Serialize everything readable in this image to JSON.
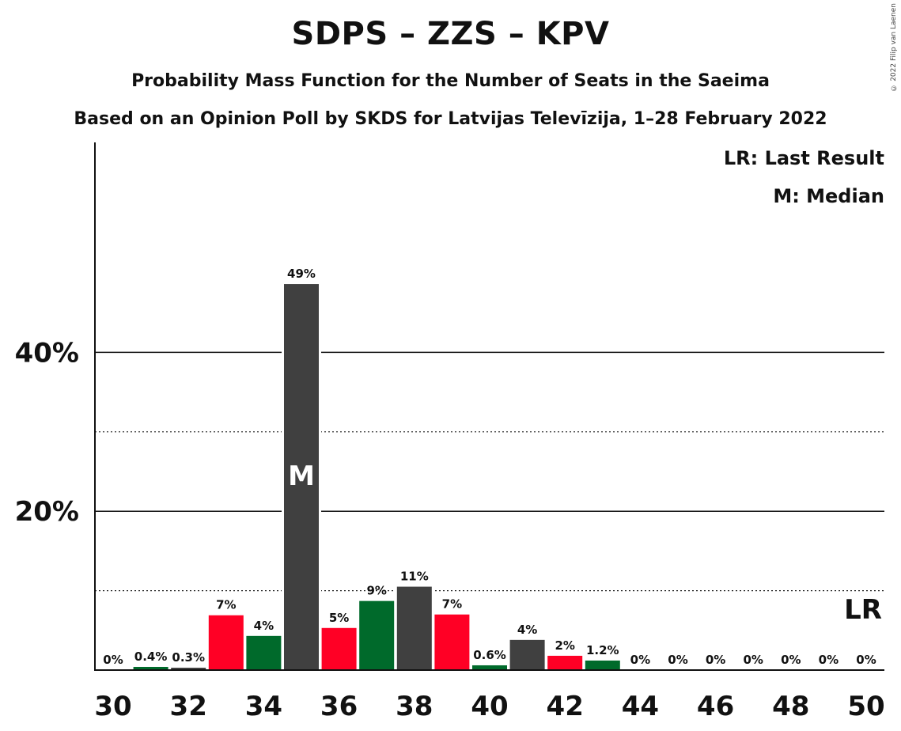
{
  "title": "SDPS – ZZS – KPV",
  "subtitle": "Probability Mass Function for the Number of Seats in the Saeima",
  "subtitle2": "Based on an Opinion Poll by SKDS for Latvijas Televīzija, 1–28 February 2022",
  "copyright": "© 2022 Filip van Laenen",
  "legend": {
    "last_result": "LR: Last Result",
    "median": "M: Median"
  },
  "colors": {
    "red": "#ff0025",
    "green": "#006a2b",
    "gray": "#404040"
  },
  "chart_data": {
    "type": "bar",
    "title": "SDPS – ZZS – KPV",
    "xlabel": "",
    "ylabel": "",
    "x": [
      30,
      31,
      32,
      33,
      34,
      35,
      36,
      37,
      38,
      39,
      40,
      41,
      42,
      43,
      44,
      45,
      46,
      47,
      48,
      49,
      50
    ],
    "values": [
      0,
      0.4,
      0.3,
      6.9,
      4.3,
      48.6,
      5.3,
      8.7,
      10.5,
      7.0,
      0.6,
      3.8,
      1.8,
      1.2,
      0,
      0,
      0,
      0,
      0,
      0,
      0
    ],
    "labels": [
      "0%",
      "0.4%",
      "0.3%",
      "7%",
      "4%",
      "49%",
      "5%",
      "9%",
      "11%",
      "7%",
      "0.6%",
      "4%",
      "2%",
      "1.2%",
      "0%",
      "0%",
      "0%",
      "0%",
      "0%",
      "0%",
      "0%"
    ],
    "bar_colors": [
      "red",
      "green",
      "gray",
      "red",
      "green",
      "gray",
      "red",
      "green",
      "gray",
      "red",
      "green",
      "gray",
      "red",
      "green",
      "gray",
      "red",
      "green",
      "gray",
      "red",
      "green",
      "gray"
    ],
    "x_ticks": [
      30,
      32,
      34,
      36,
      38,
      40,
      42,
      44,
      46,
      48,
      50
    ],
    "y_ticks": [
      20,
      40
    ],
    "y_tick_labels": [
      "20%",
      "40%"
    ],
    "y_minor_ticks": [
      10,
      30
    ],
    "ylim": [
      0,
      53
    ],
    "xlim": [
      29.5,
      50.5
    ],
    "median": 35,
    "median_label": "M",
    "last_result": 50,
    "last_result_label": "LR",
    "grid": true,
    "legend_position": "top-right"
  }
}
